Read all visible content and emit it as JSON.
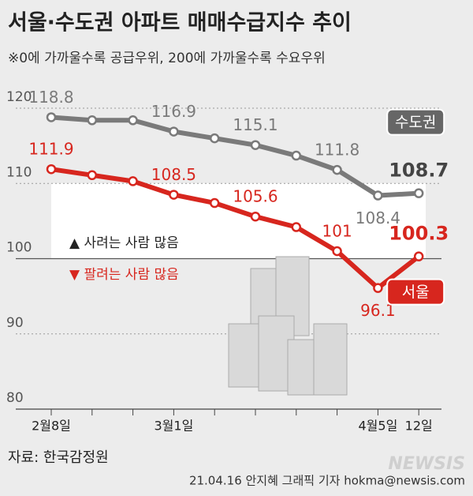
{
  "chart_data": {
    "type": "line",
    "title": "서울·수도권 아파트 매매수급지수 추이",
    "subtitle": "※0에 가까울수록 공급우위, 200에 가까울수록 수요우위",
    "annotations": [
      "▲ 사려는 사람 많음",
      "▼ 팔려는 사람 많음"
    ],
    "categories": [
      "2월8일",
      null,
      null,
      "3월1일",
      null,
      null,
      null,
      null,
      "4월5일",
      "12일"
    ],
    "series": [
      {
        "name": "수도권",
        "color": "#7a7a7a",
        "values": [
          118.8,
          118.4,
          118.4,
          116.9,
          116.0,
          115.1,
          113.7,
          111.8,
          108.4,
          108.7
        ],
        "value_labels": [
          "118.8",
          null,
          null,
          "116.9",
          null,
          "115.1",
          null,
          "111.8",
          "108.4",
          "108.7"
        ]
      },
      {
        "name": "서울",
        "color": "#d7261e",
        "values": [
          111.9,
          111.1,
          110.3,
          108.5,
          107.4,
          105.6,
          104.2,
          101,
          96.1,
          100.3
        ],
        "value_labels": [
          "111.9",
          null,
          null,
          "108.5",
          null,
          "105.6",
          null,
          "101",
          "96.1",
          "100.3"
        ]
      }
    ],
    "ylim": [
      80,
      122
    ],
    "yticks": [
      80,
      90,
      100,
      110,
      120
    ],
    "grid": true,
    "source": "자료: 한국감정원",
    "credit": "21.04.16 안지혜 그래픽 기자 hokma@newsis.com",
    "watermark": "NEWSIS"
  }
}
